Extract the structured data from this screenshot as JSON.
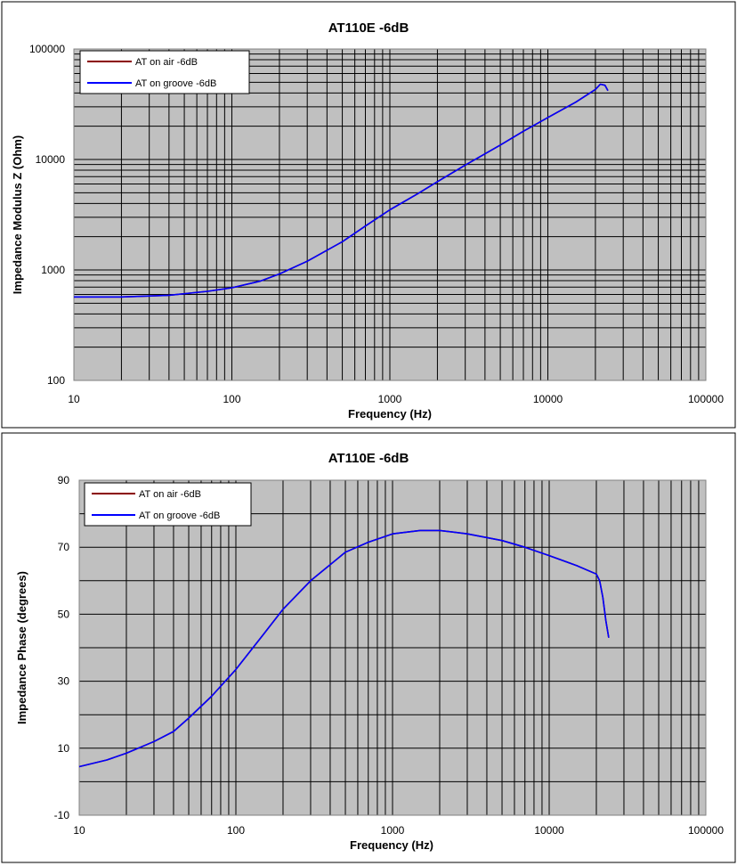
{
  "chart_data": [
    {
      "type": "line",
      "title": "AT110E -6dB",
      "xlabel": "Frequency (Hz)",
      "ylabel": "Impedance Modulus Z (Ohm)",
      "x_scale": "log",
      "y_scale": "log",
      "xlim": [
        10,
        100000
      ],
      "ylim": [
        100,
        100000
      ],
      "x_ticks": [
        "10",
        "100",
        "1000",
        "10000",
        "100000"
      ],
      "y_ticks": [
        "100",
        "1000",
        "10000",
        "100000"
      ],
      "grid": true,
      "legend_position": "top-left",
      "series": [
        {
          "name": "AT on air -6dB",
          "color": "#8b0000",
          "x": [
            10,
            20,
            40,
            70,
            100,
            150,
            200,
            300,
            500,
            700,
            1000,
            1500,
            2000,
            3000,
            5000,
            7000,
            10000,
            15000,
            20000,
            21500,
            23000,
            24000
          ],
          "y": [
            570,
            570,
            590,
            640,
            690,
            790,
            920,
            1200,
            1800,
            2500,
            3500,
            4900,
            6300,
            8900,
            13500,
            18000,
            24000,
            33000,
            43000,
            48000,
            47000,
            42000
          ]
        },
        {
          "name": "AT on groove -6dB",
          "color": "#0000ff",
          "x": [
            10,
            20,
            40,
            70,
            100,
            150,
            200,
            300,
            500,
            700,
            1000,
            1500,
            2000,
            3000,
            5000,
            7000,
            10000,
            15000,
            20000,
            21500,
            23000,
            24000
          ],
          "y": [
            570,
            570,
            590,
            640,
            690,
            790,
            920,
            1200,
            1800,
            2500,
            3500,
            4900,
            6300,
            8900,
            13500,
            18000,
            24000,
            33000,
            43000,
            48000,
            47000,
            42000
          ]
        }
      ]
    },
    {
      "type": "line",
      "title": "AT110E -6dB",
      "xlabel": "Frequency (Hz)",
      "ylabel": "Impedance Phase (degrees)",
      "x_scale": "log",
      "y_scale": "linear",
      "xlim": [
        10,
        100000
      ],
      "ylim": [
        -10,
        90
      ],
      "x_ticks": [
        "10",
        "100",
        "1000",
        "10000",
        "100000"
      ],
      "y_ticks": [
        "-10",
        "10",
        "30",
        "50",
        "70",
        "90"
      ],
      "grid": true,
      "legend_position": "top-left",
      "series": [
        {
          "name": "AT on air -6dB",
          "color": "#8b0000",
          "x": [
            10,
            15,
            20,
            30,
            40,
            50,
            70,
            100,
            150,
            200,
            300,
            500,
            700,
            1000,
            1500,
            2000,
            3000,
            5000,
            7000,
            10000,
            15000,
            20000,
            21000,
            22000,
            23000,
            24000
          ],
          "y": [
            4.5,
            6.5,
            8.5,
            12,
            15,
            19,
            25.5,
            33.5,
            44,
            51.5,
            60,
            68.5,
            71.5,
            74,
            75,
            75,
            74,
            72,
            70,
            67.5,
            64.5,
            62,
            60,
            55,
            48,
            43
          ]
        },
        {
          "name": "AT on groove -6dB",
          "color": "#0000ff",
          "x": [
            10,
            15,
            20,
            30,
            40,
            50,
            70,
            100,
            150,
            200,
            300,
            500,
            700,
            1000,
            1500,
            2000,
            3000,
            5000,
            7000,
            10000,
            15000,
            20000,
            21000,
            22000,
            23000,
            24000
          ],
          "y": [
            4.5,
            6.5,
            8.5,
            12,
            15,
            19,
            25.5,
            33.5,
            44,
            51.5,
            60,
            68.5,
            71.5,
            74,
            75,
            75,
            74,
            72,
            70,
            67.5,
            64.5,
            62,
            60,
            55,
            48,
            43
          ]
        }
      ]
    }
  ]
}
